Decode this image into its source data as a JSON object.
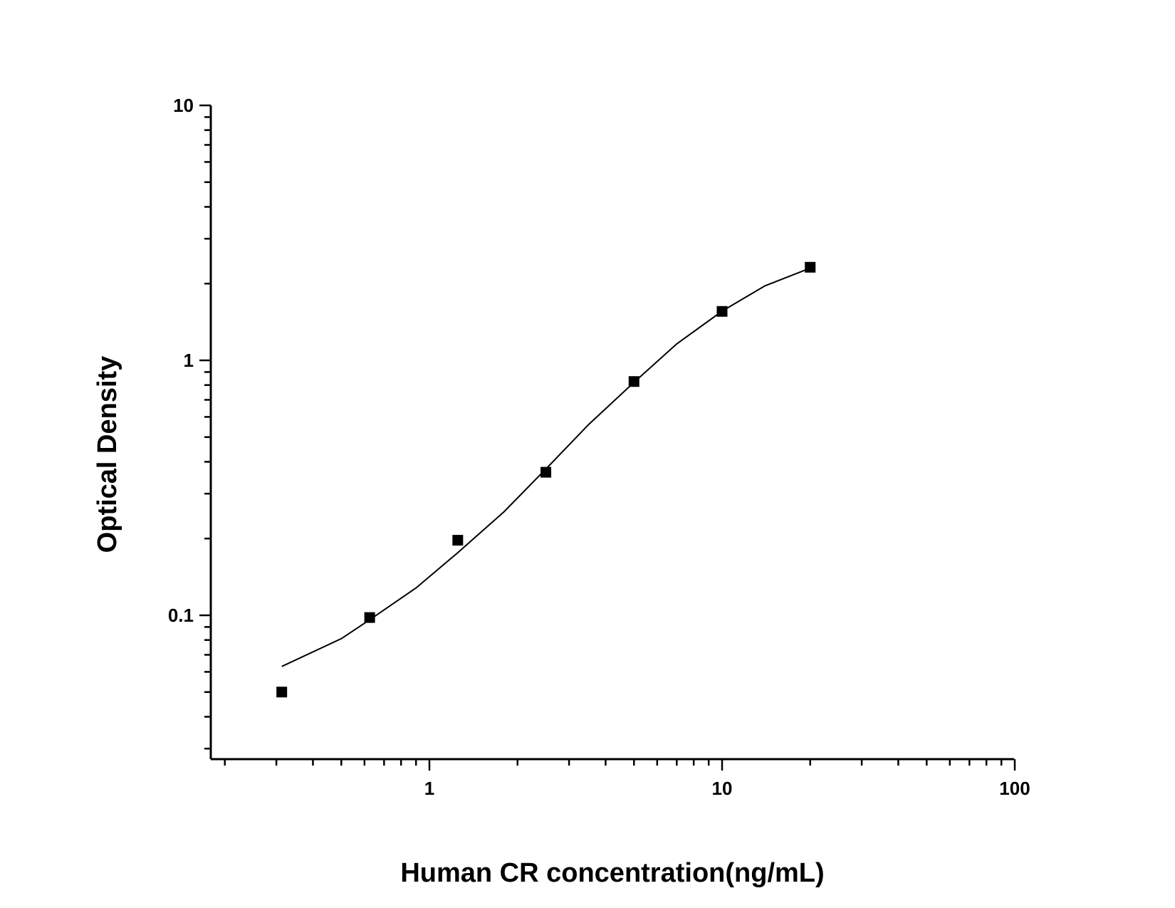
{
  "chart_data": {
    "type": "scatter",
    "title": "",
    "xlabel": "Human CR concentration(ng/mL)",
    "ylabel": "Optical Density",
    "xscale": "log",
    "yscale": "log",
    "xlim": [
      0.2,
      100
    ],
    "ylim": [
      0.03,
      10
    ],
    "x_tick_labels": [
      {
        "value": 1,
        "label": "1"
      },
      {
        "value": 10,
        "label": "10"
      },
      {
        "value": 100,
        "label": "100"
      }
    ],
    "y_tick_labels": [
      {
        "value": 0.1,
        "label": "0.1"
      },
      {
        "value": 1,
        "label": "1"
      },
      {
        "value": 10,
        "label": "10"
      }
    ],
    "grid": false,
    "legend": "none",
    "series": [
      {
        "type": "scatter",
        "marker": "square",
        "color": "#000000",
        "x": [
          0.313,
          0.625,
          1.25,
          2.5,
          5,
          10,
          20
        ],
        "y": [
          0.05,
          0.098,
          0.197,
          0.364,
          0.826,
          1.556,
          2.318
        ]
      },
      {
        "type": "line",
        "color": "#000000",
        "x": [
          0.313,
          0.5,
          0.625,
          0.9,
          1.25,
          1.8,
          2.5,
          3.5,
          5,
          7,
          10,
          14,
          20
        ],
        "y": [
          0.063,
          0.081,
          0.096,
          0.128,
          0.176,
          0.255,
          0.375,
          0.56,
          0.82,
          1.16,
          1.56,
          1.96,
          2.3
        ]
      }
    ]
  }
}
